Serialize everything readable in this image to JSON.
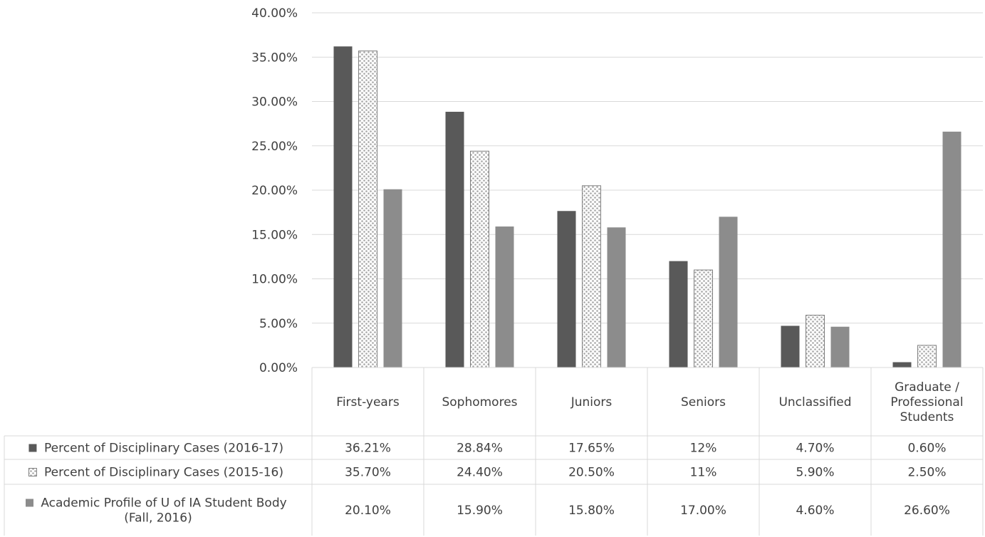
{
  "chart_data": {
    "type": "bar",
    "title": "",
    "xlabel": "",
    "ylabel": "",
    "ylim": [
      0,
      0.4
    ],
    "y_ticks": [
      "0.00%",
      "5.00%",
      "10.00%",
      "15.00%",
      "20.00%",
      "25.00%",
      "30.00%",
      "35.00%",
      "40.00%"
    ],
    "y_tick_values": [
      0,
      0.05,
      0.1,
      0.15,
      0.2,
      0.25,
      0.3,
      0.35,
      0.4
    ],
    "categories": [
      [
        "First-years"
      ],
      [
        "Sophomores"
      ],
      [
        "Juniors"
      ],
      [
        "Seniors"
      ],
      [
        "Unclassified"
      ],
      [
        "Graduate /",
        "Professional",
        "Students"
      ]
    ],
    "grid": true,
    "legend_placement": "data-table-left",
    "series": [
      {
        "name": [
          "Percent of Disciplinary Cases (2016-17)"
        ],
        "color": "#595959",
        "pattern": "solid",
        "values": [
          0.3621,
          0.2884,
          0.1765,
          0.12,
          0.047,
          0.006
        ],
        "labels": [
          "36.21%",
          "28.84%",
          "17.65%",
          "12%",
          "4.70%",
          "0.60%"
        ]
      },
      {
        "name": [
          "Percent of Disciplinary Cases (2015-16)"
        ],
        "color": "#a6a6a6",
        "pattern": "dotted-grid",
        "values": [
          0.357,
          0.244,
          0.205,
          0.11,
          0.059,
          0.025
        ],
        "labels": [
          "35.70%",
          "24.40%",
          "20.50%",
          "11%",
          "5.90%",
          "2.50%"
        ]
      },
      {
        "name": [
          "Academic Profile of U of IA Student Body",
          "(Fall, 2016)"
        ],
        "color": "#8c8c8c",
        "pattern": "solid",
        "values": [
          0.201,
          0.159,
          0.158,
          0.17,
          0.046,
          0.266
        ],
        "labels": [
          "20.10%",
          "15.90%",
          "15.80%",
          "17.00%",
          "4.60%",
          "26.60%"
        ]
      }
    ]
  }
}
